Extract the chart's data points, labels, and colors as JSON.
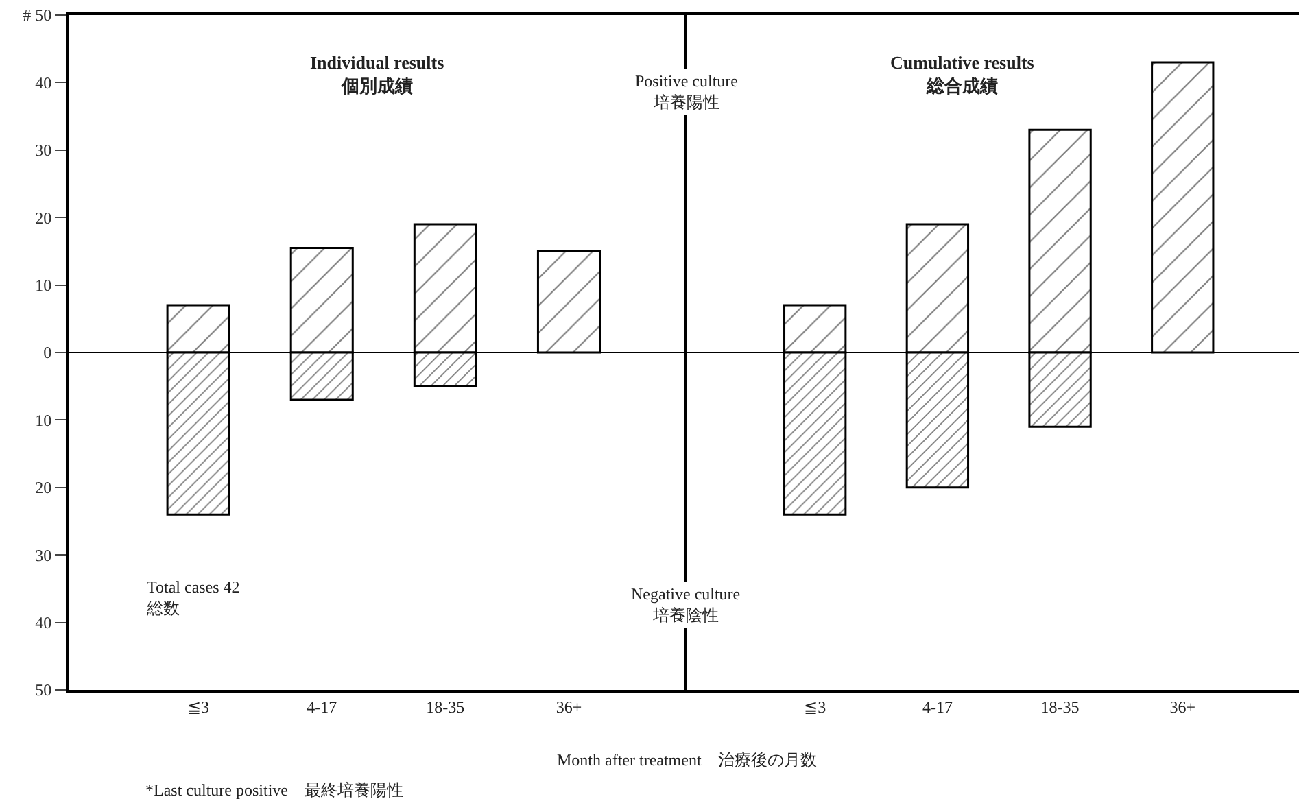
{
  "chart_data": [
    {
      "type": "bar",
      "title": "Individual results\n個別成績",
      "xlabel": "Month after treatment　治療後の月数",
      "categories": [
        "≦3",
        "4-17",
        "18-35",
        "36+"
      ],
      "stacked": true,
      "series": [
        {
          "color": "#000000",
          "values": [
            7,
            15.5,
            19,
            15
          ]
        },
        {
          "color": "#000000",
          "values": [
            -24,
            -7,
            -5,
            null
          ]
        }
      ],
      "ylim": [
        -50,
        50
      ],
      "yticks": [
        {
          "value": -50,
          "label": "50"
        },
        {
          "value": -40,
          "label": "40"
        },
        {
          "value": -30,
          "label": "30"
        },
        {
          "value": -20,
          "label": "20"
        },
        {
          "value": -10,
          "label": "10"
        },
        0,
        10,
        20,
        30,
        40,
        {
          "value": 50,
          "label": "# 50"
        }
      ],
      "ref_lines": [
        {
          "axis": "y",
          "value": 0
        }
      ],
      "annotations": [
        "Positive culture\n培養陽性",
        "Negative culture\n培養陰性",
        "Total cases 42\n総数",
        "*Last culture positive　最終培養陽性"
      ]
    },
    {
      "type": "bar",
      "title": "Cumulative results\n総合成績",
      "categories": [
        "≦3",
        "4-17",
        "18-35",
        "36+"
      ],
      "stacked": true,
      "series": [
        {
          "color": "#000000",
          "values": [
            7,
            19,
            33,
            43
          ]
        },
        {
          "color": "#000000",
          "values": [
            -24,
            -20,
            -11,
            null
          ]
        }
      ],
      "ylim": [
        -50,
        50
      ],
      "ref_lines": [
        {
          "axis": "y",
          "value": 0
        }
      ],
      "tick_labels": "x"
    }
  ]
}
